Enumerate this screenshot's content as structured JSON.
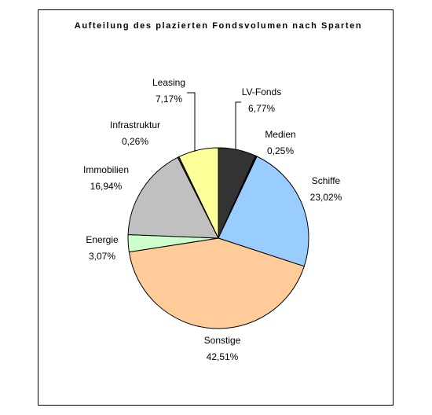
{
  "chart_data": {
    "type": "pie",
    "title": "Aufteilung des plazierten Fondsvolumen nach Sparten",
    "categories": [
      "LV-Fonds",
      "Medien",
      "Schiffe",
      "Sonstige",
      "Energie",
      "Immobilien",
      "Infrastruktur",
      "Leasing"
    ],
    "values": [
      6.77,
      0.25,
      23.02,
      42.51,
      3.07,
      16.94,
      0.26,
      7.17
    ],
    "value_labels": [
      "6,77%",
      "0,25%",
      "23,02%",
      "42,51%",
      "3,07%",
      "16,94%",
      "0,26%",
      "7,17%"
    ],
    "colors": [
      "#333333",
      "#000000",
      "#99ccff",
      "#ffcc99",
      "#ccffcc",
      "#c0c0c0",
      "#333333",
      "#ffff99"
    ]
  }
}
